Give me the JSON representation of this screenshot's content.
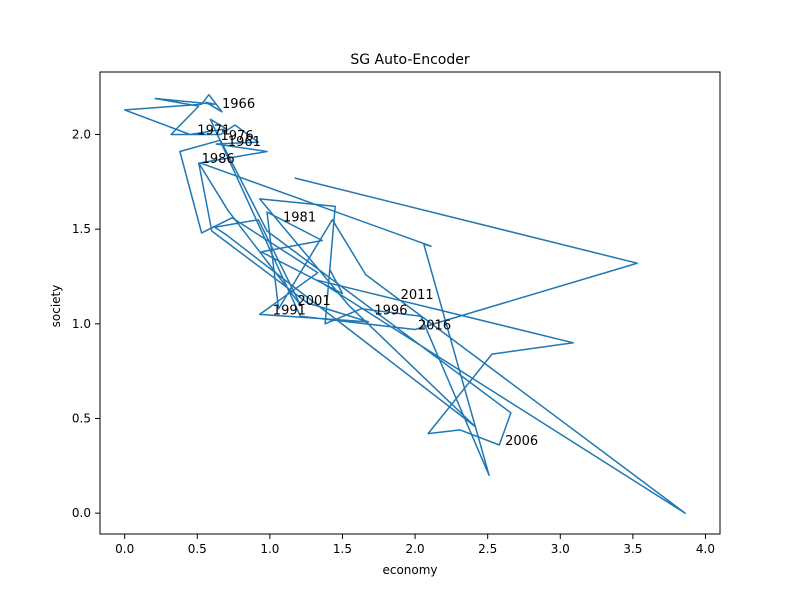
{
  "colors": {
    "line": "#1f77b4",
    "axis": "#000000",
    "background": "#ffffff"
  },
  "chart_data": {
    "type": "line",
    "title": "SG Auto-Encoder",
    "xlabel": "economy",
    "ylabel": "society",
    "xlim": [
      -0.17,
      4.1
    ],
    "ylim": [
      -0.11,
      2.33
    ],
    "grid": false,
    "x_ticks": [
      0.0,
      0.5,
      1.0,
      1.5,
      2.0,
      2.5,
      3.0,
      3.5,
      4.0
    ],
    "x_tick_labels": [
      "0.0",
      "0.5",
      "1.0",
      "1.5",
      "2.0",
      "2.5",
      "3.0",
      "3.5",
      "4.0"
    ],
    "y_ticks": [
      0.0,
      0.5,
      1.0,
      1.5,
      2.0
    ],
    "y_tick_labels": [
      "0.0",
      "0.5",
      "1.0",
      "1.5",
      "2.0"
    ],
    "series": [
      {
        "x": [
          1.17,
          3.53,
          2.0,
          1.21,
          0.59,
          0.7,
          0.45,
          0.0,
          0.53,
          0.58,
          0.67,
          0.56,
          0.62,
          0.21,
          0.51,
          0.32,
          0.66,
          0.76,
          0.92,
          0.63,
          0.98,
          0.52,
          2.11,
          2.06,
          2.51,
          2.04,
          1.63,
          1.38,
          1.45,
          0.93,
          1.54,
          2.41,
          0.7,
          0.62,
          0.92,
          1.21,
          0.71,
          0.51,
          0.6,
          1.26,
          1.68,
          0.93,
          1.33,
          0.74,
          0.53,
          0.38,
          0.66,
          0.98,
          2.66,
          2.58,
          2.31,
          2.09,
          2.53,
          3.09,
          1.33,
          3.86,
          1.66,
          1.43,
          1.06,
          0.98,
          1.36,
          0.94,
          1.5,
          1.41
        ],
        "y": [
          1.77,
          1.32,
          0.97,
          1.04,
          2.08,
          2.03,
          2.0,
          2.13,
          2.16,
          2.21,
          2.12,
          2.17,
          2.16,
          2.19,
          2.15,
          2.0,
          2.0,
          2.05,
          1.96,
          1.95,
          1.91,
          1.85,
          1.41,
          1.42,
          0.2,
          1.04,
          1.08,
          1.0,
          1.62,
          1.66,
          1.1,
          0.46,
          1.47,
          1.51,
          1.55,
          1.1,
          1.6,
          1.85,
          1.49,
          1.11,
          1.01,
          1.05,
          1.27,
          1.56,
          1.48,
          1.91,
          1.97,
          1.49,
          0.53,
          0.36,
          0.44,
          0.42,
          0.84,
          0.9,
          1.23,
          0.0,
          1.26,
          1.55,
          1.08,
          1.59,
          1.44,
          1.38,
          1.16,
          1.29
        ]
      }
    ],
    "annotations": [
      {
        "text": "1966",
        "x": 0.67,
        "y": 2.14
      },
      {
        "text": "1971",
        "x": 0.5,
        "y": 2.0
      },
      {
        "text": "1976",
        "x": 0.66,
        "y": 1.97
      },
      {
        "text": "1961",
        "x": 0.71,
        "y": 1.94
      },
      {
        "text": "1986",
        "x": 0.53,
        "y": 1.85
      },
      {
        "text": "1981",
        "x": 1.09,
        "y": 1.54
      },
      {
        "text": "2001",
        "x": 1.19,
        "y": 1.1
      },
      {
        "text": "2011",
        "x": 1.9,
        "y": 1.13
      },
      {
        "text": "1991",
        "x": 1.02,
        "y": 1.05
      },
      {
        "text": "1996",
        "x": 1.72,
        "y": 1.05
      },
      {
        "text": "2016",
        "x": 2.02,
        "y": 0.97
      },
      {
        "text": "2006",
        "x": 2.62,
        "y": 0.36
      }
    ]
  }
}
